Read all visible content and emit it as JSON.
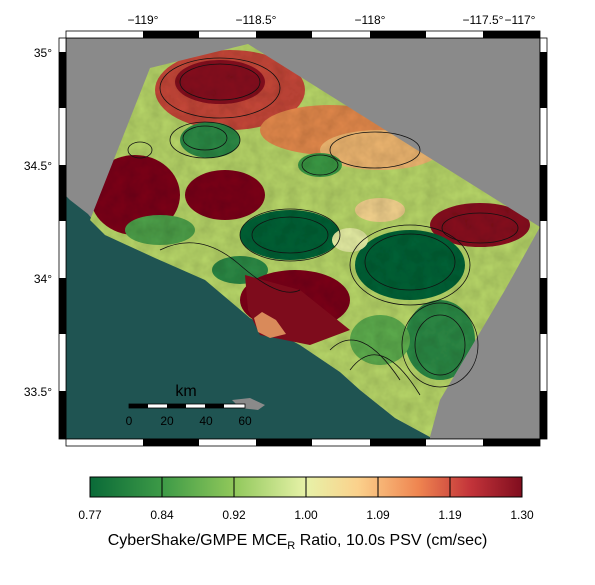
{
  "map": {
    "lon_ticks": [
      "−119°",
      "−118.5°",
      "−118°",
      "−117.5°",
      "−117°"
    ],
    "lat_ticks": [
      "35°",
      "34.5°",
      "34°",
      "33.5°"
    ],
    "scale_bar": {
      "title": "km",
      "ticks": [
        "0",
        "20",
        "40",
        "60"
      ]
    },
    "colors": {
      "ocean": "#1f5452",
      "no_data": "#8a8a8a",
      "land_low": "#11633a",
      "land_high": "#7a0a1c"
    }
  },
  "colorbar": {
    "labels": [
      "0.77",
      "0.84",
      "0.92",
      "1.00",
      "1.09",
      "1.19",
      "1.30"
    ],
    "stops": [
      "#0a6a38",
      "#3e9b47",
      "#8fc75a",
      "#e7f2a8",
      "#fbd18c",
      "#ef8550",
      "#c3343a",
      "#800d1e"
    ],
    "title_main": "CyberShake/GMPE MCE",
    "title_sub": "R",
    "title_rest": " Ratio, 10.0s PSV (cm/sec)"
  }
}
